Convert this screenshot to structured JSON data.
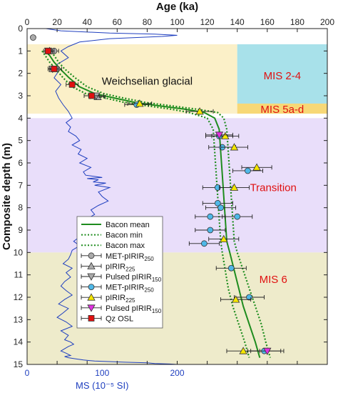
{
  "chart_data": {
    "type": "scatter",
    "top_axis": {
      "label": "Age (ka)",
      "range": [
        0,
        200
      ],
      "ticks": [
        "0",
        "20",
        "40",
        "60",
        "80",
        "100",
        "120",
        "140",
        "160",
        "180",
        "200"
      ]
    },
    "y_axis": {
      "label": "Composite depth (m)",
      "range": [
        0,
        15
      ],
      "ticks": [
        "0",
        "1",
        "2",
        "3",
        "4",
        "5",
        "6",
        "7",
        "8",
        "9",
        "10",
        "11",
        "12",
        "13",
        "14",
        "15"
      ]
    },
    "bottom_axis": {
      "label": "MS (10⁻⁵ SI)",
      "range": [
        0,
        400
      ],
      "ticks": [
        "0",
        "100",
        "200"
      ],
      "color": "#1f3fbf"
    },
    "regions": [
      {
        "label": "Weichselian glacial",
        "depth": [
          0.7,
          3.8
        ],
        "age": [
          0,
          140
        ],
        "color": "#fbf0c8",
        "text_color": "#111111"
      },
      {
        "label": "MIS 2-4",
        "depth": [
          0.7,
          3.35
        ],
        "age": [
          140,
          200
        ],
        "color": "#a8e1ea",
        "text_color": "#e01010"
      },
      {
        "label": "MIS 5a-d",
        "depth": [
          3.35,
          3.8
        ],
        "age": [
          140,
          200
        ],
        "color": "#f7d877",
        "text_color": "#e01010"
      },
      {
        "label": "Transition",
        "depth": [
          4.0,
          10.0
        ],
        "age": [
          0,
          200
        ],
        "color": "#e9defa",
        "text_color": "#e01010"
      },
      {
        "label": "MIS 6",
        "depth": [
          10.0,
          15.0
        ],
        "age": [
          0,
          200
        ],
        "color": "#eeebcb",
        "text_color": "#e01010"
      }
    ],
    "series": [
      {
        "name": "Bacon mean",
        "kind": "line",
        "style": "solid",
        "color": "#1e8c1e",
        "x": [
          12,
          15,
          18,
          22,
          28,
          35,
          45,
          58,
          72,
          88,
          105,
          118,
          125,
          128,
          129,
          130,
          131,
          132,
          133,
          135,
          138,
          141,
          144,
          148,
          152,
          155
        ],
        "y": [
          1.0,
          1.2,
          1.5,
          1.8,
          2.2,
          2.6,
          2.9,
          3.1,
          3.3,
          3.45,
          3.6,
          3.75,
          4.0,
          4.5,
          5.5,
          6.5,
          7.5,
          8.5,
          9.5,
          10.0,
          10.8,
          11.6,
          12.4,
          13.2,
          14.0,
          14.7
        ]
      },
      {
        "name": "Bacon min",
        "kind": "line",
        "style": "dotted",
        "color": "#1e8c1e",
        "x": [
          10,
          12,
          15,
          19,
          24,
          30,
          39,
          52,
          65,
          80,
          96,
          108,
          120,
          124,
          125,
          126,
          127,
          128,
          129,
          130,
          132,
          134,
          137,
          141,
          145,
          148
        ],
        "y": [
          1.0,
          1.2,
          1.5,
          1.8,
          2.2,
          2.6,
          2.9,
          3.1,
          3.3,
          3.45,
          3.6,
          3.75,
          4.0,
          4.5,
          5.5,
          6.5,
          7.5,
          8.5,
          9.5,
          10.0,
          10.8,
          11.6,
          12.4,
          13.2,
          14.0,
          14.7
        ]
      },
      {
        "name": "Bacon max",
        "kind": "line",
        "style": "dotted",
        "color": "#1e8c1e",
        "x": [
          14,
          18,
          21,
          25,
          32,
          40,
          51,
          64,
          79,
          96,
          113,
          127,
          131,
          133,
          134,
          135,
          136,
          137,
          138,
          140,
          144,
          148,
          152,
          156,
          159,
          162
        ],
        "y": [
          1.0,
          1.2,
          1.5,
          1.8,
          2.2,
          2.6,
          2.9,
          3.1,
          3.3,
          3.45,
          3.6,
          3.75,
          4.0,
          4.5,
          5.5,
          6.5,
          7.5,
          8.5,
          9.5,
          10.0,
          10.8,
          11.6,
          12.4,
          13.2,
          14.0,
          14.7
        ]
      },
      {
        "name": "MET-pIRIR250",
        "legend_name": "MET-pIRIR",
        "legend_sub": "250",
        "kind": "points",
        "marker": "circle",
        "fill": "#aaaaaa",
        "points": [
          {
            "x": 4,
            "y": 0.4,
            "err": 0
          },
          {
            "x": 18,
            "y": 1.0,
            "err": 3
          },
          {
            "x": 20,
            "y": 1.8,
            "err": 3
          }
        ]
      },
      {
        "name": "pIRIR225",
        "legend_name": "pIRIR",
        "legend_sub": "225",
        "kind": "points",
        "marker": "triangle-up",
        "fill": "#aaaaaa",
        "points": [
          {
            "x": 15,
            "y": 1.0,
            "err": 3
          },
          {
            "x": 17,
            "y": 1.8,
            "err": 3
          },
          {
            "x": 47,
            "y": 3.05,
            "err": 5
          }
        ]
      },
      {
        "name": "Pulsed pIRIR150",
        "legend_name": "Pulsed pIRIR",
        "legend_sub": "150",
        "kind": "points",
        "marker": "triangle-down",
        "fill": "#aaaaaa",
        "points": [
          {
            "x": 14,
            "y": 1.0,
            "err": 3
          },
          {
            "x": 17,
            "y": 1.8,
            "err": 3
          },
          {
            "x": 46,
            "y": 3.0,
            "err": 5
          }
        ]
      },
      {
        "name": "MET-pIRIR250",
        "legend_name": "MET-pIRIR",
        "legend_sub": "250",
        "kind": "points",
        "marker": "circle",
        "fill": "#4fb8e8",
        "points": [
          {
            "x": 73,
            "y": 3.4,
            "err": 8
          },
          {
            "x": 128,
            "y": 4.8,
            "err": 9
          },
          {
            "x": 130,
            "y": 5.3,
            "err": 9
          },
          {
            "x": 147,
            "y": 6.35,
            "err": 10
          },
          {
            "x": 127,
            "y": 7.1,
            "err": 10
          },
          {
            "x": 127,
            "y": 7.8,
            "err": 10
          },
          {
            "x": 129,
            "y": 8.0,
            "err": 10
          },
          {
            "x": 122,
            "y": 8.4,
            "err": 10
          },
          {
            "x": 140,
            "y": 8.4,
            "err": 10
          },
          {
            "x": 122,
            "y": 9.0,
            "err": 10
          },
          {
            "x": 118,
            "y": 9.6,
            "err": 10
          },
          {
            "x": 136,
            "y": 10.7,
            "err": 10
          },
          {
            "x": 148,
            "y": 12.0,
            "err": 10
          },
          {
            "x": 158,
            "y": 14.4,
            "err": 11
          }
        ]
      },
      {
        "name": "pIRIR225",
        "legend_name": "pIRIR",
        "legend_sub": "225",
        "kind": "points",
        "marker": "triangle-up",
        "fill": "#f5e600",
        "points": [
          {
            "x": 75,
            "y": 3.35,
            "err": 8
          },
          {
            "x": 115,
            "y": 3.7,
            "err": 9
          },
          {
            "x": 132,
            "y": 4.8,
            "err": 9
          },
          {
            "x": 138,
            "y": 5.3,
            "err": 9
          },
          {
            "x": 153,
            "y": 6.2,
            "err": 10
          },
          {
            "x": 138,
            "y": 7.1,
            "err": 10
          },
          {
            "x": 131,
            "y": 9.4,
            "err": 10
          },
          {
            "x": 139,
            "y": 12.1,
            "err": 10
          },
          {
            "x": 144,
            "y": 14.4,
            "err": 11
          }
        ]
      },
      {
        "name": "Pulsed pIRIR150",
        "legend_name": "Pulsed pIRIR",
        "legend_sub": "150",
        "kind": "points",
        "marker": "triangle-down",
        "fill": "#e030e0",
        "points": [
          {
            "x": 128,
            "y": 4.75,
            "err": 9
          },
          {
            "x": 160,
            "y": 14.4,
            "err": 11
          }
        ]
      },
      {
        "name": "Qz OSL",
        "legend_name": "Qz OSL",
        "legend_sub": "",
        "kind": "points",
        "marker": "square",
        "fill": "#e01010",
        "points": [
          {
            "x": 14,
            "y": 1.0,
            "err": 2
          },
          {
            "x": 18,
            "y": 1.8,
            "err": 3
          },
          {
            "x": 30,
            "y": 2.5,
            "err": 4
          },
          {
            "x": 43,
            "y": 3.0,
            "err": 5
          }
        ]
      }
    ],
    "ms_curve": {
      "name": "MS",
      "color": "#1f3fbf",
      "x": [
        25,
        45,
        110,
        170,
        200,
        180,
        110,
        70,
        55,
        45,
        55,
        40,
        42,
        36,
        45,
        38,
        42,
        48,
        55,
        60,
        52,
        58,
        55,
        65,
        70,
        60,
        72,
        68,
        80,
        70,
        85,
        75,
        78,
        100,
        80,
        95,
        88,
        105,
        90,
        110,
        95,
        100,
        108,
        95,
        85,
        90,
        80,
        72,
        85,
        78,
        70,
        62,
        70,
        60,
        58,
        55,
        48,
        60,
        52,
        58,
        50,
        45,
        52,
        60,
        50,
        42,
        55,
        48,
        40,
        52,
        60,
        45,
        55,
        50,
        58,
        62,
        55,
        50,
        45,
        52,
        58,
        50,
        55,
        65,
        75,
        90,
        130,
        160,
        170,
        190,
        200
      ],
      "y": [
        0.0,
        0.1,
        0.2,
        0.25,
        0.3,
        0.35,
        0.45,
        0.6,
        0.8,
        1.0,
        1.3,
        1.6,
        1.9,
        2.2,
        2.5,
        2.8,
        3.1,
        3.4,
        3.7,
        4.0,
        4.2,
        4.4,
        4.6,
        4.8,
        5.0,
        5.2,
        5.4,
        5.6,
        5.8,
        6.0,
        6.2,
        6.4,
        6.55,
        6.65,
        6.7,
        6.75,
        6.85,
        6.9,
        7.0,
        7.1,
        7.3,
        7.5,
        7.7,
        7.9,
        8.1,
        8.3,
        8.5,
        8.7,
        8.9,
        9.1,
        9.3,
        9.5,
        9.7,
        9.9,
        10.1,
        10.3,
        10.5,
        10.7,
        10.9,
        11.1,
        11.3,
        11.5,
        11.7,
        11.9,
        12.1,
        12.3,
        12.5,
        12.7,
        12.9,
        13.1,
        13.3,
        13.5,
        13.7,
        13.9,
        14.0,
        14.1,
        14.2,
        14.3,
        14.4,
        14.5,
        14.6,
        14.65,
        14.7,
        14.75,
        14.8,
        14.85,
        14.9,
        14.93,
        14.96,
        14.98,
        15.0
      ]
    }
  }
}
